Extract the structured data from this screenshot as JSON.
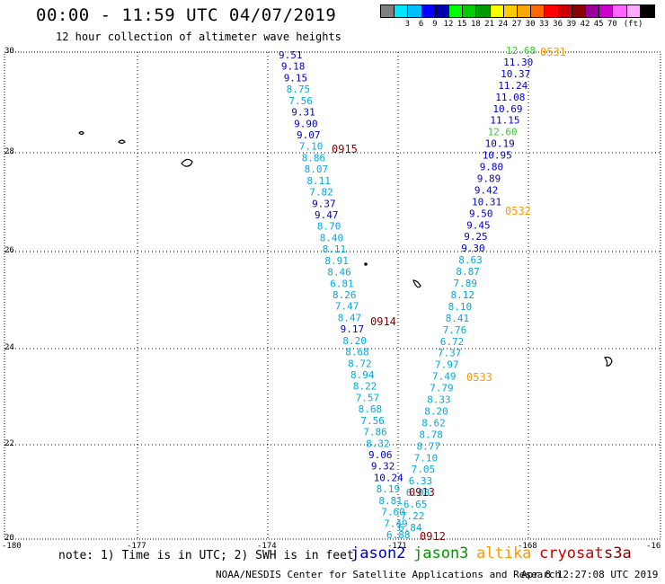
{
  "header": {
    "title": "00:00 - 11:59 UTC 04/07/2019",
    "subtitle": "12 hour collection of altimeter wave heights"
  },
  "colorbar": {
    "unit": "(ft)",
    "colors": [
      "#808080",
      "#00e5ff",
      "#00bfff",
      "#0000ff",
      "#0000aa",
      "#00ff00",
      "#00cc00",
      "#009900",
      "#ffff00",
      "#ffcc00",
      "#ffa500",
      "#ff6a00",
      "#ff0000",
      "#cc0000",
      "#880000",
      "#990099",
      "#cc00cc",
      "#ff66ff",
      "#ffaaff",
      "#000000"
    ],
    "labels": [
      "3",
      "6",
      "9",
      "12",
      "15",
      "18",
      "21",
      "24",
      "27",
      "30",
      "33",
      "36",
      "39",
      "42",
      "45",
      "70"
    ]
  },
  "axes": {
    "lat_labels": [
      "30",
      "28",
      "26",
      "24",
      "22",
      "20"
    ],
    "lon_labels": [
      "-180",
      "-177",
      "-174",
      "-171",
      "-168",
      "-16"
    ]
  },
  "tracks": {
    "left": [
      {
        "v": "9.51",
        "c": "#0000cc"
      },
      {
        "v": "9.18",
        "c": "#0000cc"
      },
      {
        "v": "9.15",
        "c": "#0000cc"
      },
      {
        "v": "8.75",
        "c": "#00aadd"
      },
      {
        "v": "7.56",
        "c": "#00aadd"
      },
      {
        "v": "9.31",
        "c": "#0000cc"
      },
      {
        "v": "9.90",
        "c": "#0000cc"
      },
      {
        "v": "9.07",
        "c": "#0000cc"
      },
      {
        "v": "7.10",
        "c": "#00aadd"
      },
      {
        "v": "8.86",
        "c": "#00aadd"
      },
      {
        "v": "8.07",
        "c": "#00aadd"
      },
      {
        "v": "8.11",
        "c": "#00aadd"
      },
      {
        "v": "7.82",
        "c": "#00aadd"
      },
      {
        "v": "9.37",
        "c": "#0000cc"
      },
      {
        "v": "9.47",
        "c": "#0000cc"
      },
      {
        "v": "8.70",
        "c": "#00aadd"
      },
      {
        "v": "8.40",
        "c": "#00aadd"
      },
      {
        "v": "8.11",
        "c": "#00aadd"
      },
      {
        "v": "8.91",
        "c": "#00aadd"
      },
      {
        "v": "8.46",
        "c": "#00aadd"
      },
      {
        "v": "6.81",
        "c": "#00aadd"
      },
      {
        "v": "8.26",
        "c": "#00aadd"
      },
      {
        "v": "7.47",
        "c": "#00aadd"
      },
      {
        "v": "8.47",
        "c": "#00aadd"
      },
      {
        "v": "9.17",
        "c": "#0000cc"
      },
      {
        "v": "8.20",
        "c": "#00aadd"
      },
      {
        "v": "8.68",
        "c": "#00aadd"
      },
      {
        "v": "8.72",
        "c": "#00aadd"
      },
      {
        "v": "8.94",
        "c": "#00aadd"
      },
      {
        "v": "8.22",
        "c": "#00aadd"
      },
      {
        "v": "7.57",
        "c": "#00aadd"
      },
      {
        "v": "8.68",
        "c": "#00aadd"
      },
      {
        "v": "7.56",
        "c": "#00aadd"
      },
      {
        "v": "7.86",
        "c": "#00aadd"
      },
      {
        "v": "8.32",
        "c": "#00aadd"
      },
      {
        "v": "9.06",
        "c": "#0000cc"
      },
      {
        "v": "9.32",
        "c": "#0000cc"
      },
      {
        "v": "10.24",
        "c": "#0000cc"
      },
      {
        "v": "8.19",
        "c": "#00aadd"
      },
      {
        "v": "8.81",
        "c": "#00aadd"
      },
      {
        "v": "7.60",
        "c": "#00aadd"
      },
      {
        "v": "7.49",
        "c": "#00aadd"
      },
      {
        "v": "6.88",
        "c": "#00aadd"
      }
    ],
    "right": [
      {
        "v": "12.68",
        "c": "#33cc33"
      },
      {
        "v": "11.30",
        "c": "#0000cc"
      },
      {
        "v": "10.37",
        "c": "#0000cc"
      },
      {
        "v": "11.24",
        "c": "#0000cc"
      },
      {
        "v": "11.08",
        "c": "#0000cc"
      },
      {
        "v": "10.69",
        "c": "#0000cc"
      },
      {
        "v": "11.15",
        "c": "#0000cc"
      },
      {
        "v": "12.60",
        "c": "#33cc33"
      },
      {
        "v": "10.19",
        "c": "#0000cc"
      },
      {
        "v": "10.95",
        "c": "#0000cc"
      },
      {
        "v": "9.80",
        "c": "#0000cc"
      },
      {
        "v": "9.89",
        "c": "#0000cc"
      },
      {
        "v": "9.42",
        "c": "#0000cc"
      },
      {
        "v": "10.31",
        "c": "#0000cc"
      },
      {
        "v": "9.50",
        "c": "#0000cc"
      },
      {
        "v": "9.45",
        "c": "#0000cc"
      },
      {
        "v": "9.25",
        "c": "#0000cc"
      },
      {
        "v": "9.30",
        "c": "#0000cc"
      },
      {
        "v": "8.63",
        "c": "#00aadd"
      },
      {
        "v": "8.87",
        "c": "#00aadd"
      },
      {
        "v": "7.89",
        "c": "#00aadd"
      },
      {
        "v": "8.12",
        "c": "#00aadd"
      },
      {
        "v": "8.10",
        "c": "#00aadd"
      },
      {
        "v": "8.41",
        "c": "#00aadd"
      },
      {
        "v": "7.76",
        "c": "#00aadd"
      },
      {
        "v": "6.72",
        "c": "#00aadd"
      },
      {
        "v": "7.37",
        "c": "#00aadd"
      },
      {
        "v": "7.97",
        "c": "#00aadd"
      },
      {
        "v": "7.49",
        "c": "#00aadd"
      },
      {
        "v": "7.79",
        "c": "#00aadd"
      },
      {
        "v": "8.33",
        "c": "#00aadd"
      },
      {
        "v": "8.20",
        "c": "#00aadd"
      },
      {
        "v": "8.62",
        "c": "#00aadd"
      },
      {
        "v": "8.78",
        "c": "#00aadd"
      },
      {
        "v": "8.77",
        "c": "#00aadd"
      },
      {
        "v": "7.10",
        "c": "#00aadd"
      },
      {
        "v": "7.05",
        "c": "#00aadd"
      },
      {
        "v": "6.33",
        "c": "#00aadd"
      },
      {
        "v": "6.08",
        "c": "#00aadd"
      },
      {
        "v": "6.65",
        "c": "#00aadd"
      },
      {
        "v": "7.22",
        "c": "#00aadd"
      },
      {
        "v": "6.84",
        "c": "#00aadd"
      }
    ]
  },
  "time_labels": [
    {
      "v": "0531",
      "c": "#ff9900"
    },
    {
      "v": "0532",
      "c": "#ff9900"
    },
    {
      "v": "0533",
      "c": "#ff9900"
    },
    {
      "v": "0915",
      "c": "#880000"
    },
    {
      "v": "0914",
      "c": "#880000"
    },
    {
      "v": "0913",
      "c": "#880000"
    },
    {
      "v": "0912",
      "c": "#880000"
    }
  ],
  "footer": {
    "note": "note: 1) Time is in UTC; 2) SWH is in feet",
    "satellites": [
      {
        "name": "jason2",
        "color": "#0000cc"
      },
      {
        "name": "jason3",
        "color": "#009900"
      },
      {
        "name": "altika",
        "color": "#ff9900"
      },
      {
        "name": "cryosat",
        "color": "#cc0000"
      },
      {
        "name": "s3a",
        "color": "#880000"
      }
    ],
    "credit": "NOAA/NESDIS Center for Satellite Applications and Research",
    "stamp": "Apr  8 12:27:08 UTC 2019"
  }
}
